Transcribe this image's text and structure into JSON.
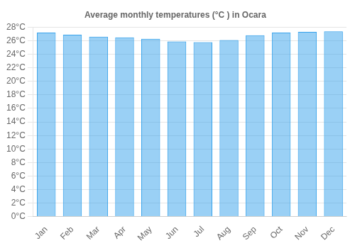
{
  "chart_data": {
    "type": "bar",
    "title": "Average monthly temperatures (°C ) in Ocara",
    "categories": [
      "Jan",
      "Feb",
      "Mar",
      "Apr",
      "May",
      "Jun",
      "Jul",
      "Aug",
      "Sep",
      "Oct",
      "Nov",
      "Dec"
    ],
    "values": [
      27.2,
      26.9,
      26.6,
      26.5,
      26.3,
      25.9,
      25.8,
      26.1,
      26.8,
      27.2,
      27.3,
      27.4
    ],
    "ylim": [
      0,
      28
    ],
    "yticks": [
      {
        "value": 0,
        "label": "0°C"
      },
      {
        "value": 2,
        "label": "2°C"
      },
      {
        "value": 4,
        "label": "4°C"
      },
      {
        "value": 6,
        "label": "6°C"
      },
      {
        "value": 8,
        "label": "8°C"
      },
      {
        "value": 10,
        "label": "10°C"
      },
      {
        "value": 12,
        "label": "12°C"
      },
      {
        "value": 14,
        "label": "14°C"
      },
      {
        "value": 16,
        "label": "16°C"
      },
      {
        "value": 18,
        "label": "18°C"
      },
      {
        "value": 20,
        "label": "20°C"
      },
      {
        "value": 22,
        "label": "22°C"
      },
      {
        "value": 24,
        "label": "24°C"
      },
      {
        "value": 26,
        "label": "26°C"
      },
      {
        "value": 28,
        "label": "28°C"
      }
    ],
    "grid": true
  }
}
